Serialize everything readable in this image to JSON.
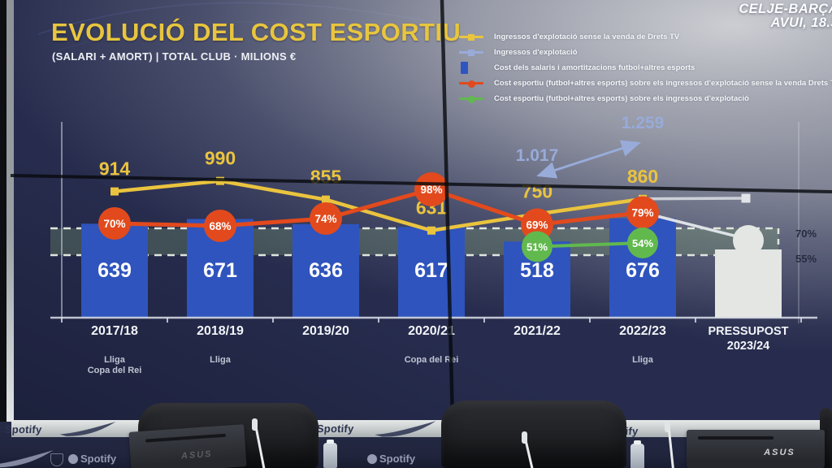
{
  "broadcast_overlay": {
    "line1": "CELJE-BARÇA",
    "line2": "AVUI, 18.3"
  },
  "slide": {
    "title": "EVOLUCIÓ DEL COST ESPORTIU",
    "subtitle": "(SALARI + AMORT) | TOTAL CLUB · MILIONS €",
    "legend": [
      {
        "marker": "yellow-line-square",
        "color": "#eac43e",
        "label": "Ingressos d'explotació sense la venda de Drets TV"
      },
      {
        "marker": "lavender-line-square",
        "color": "#98abd9",
        "label": "Ingressos d'explotació"
      },
      {
        "marker": "blue-bar",
        "color": "#2f55c0",
        "label": "Cost dels salaris i amortitzacions futbol+altres esports"
      },
      {
        "marker": "red-line-circle",
        "color": "#e24a1d",
        "label": "Cost esportiu (futbol+altres esports) sobre els ingressos d'explotació sense la venda Drets TV"
      },
      {
        "marker": "green-line-circle",
        "color": "#61b94e",
        "label": "Cost esportiu (futbol+altres esports) sobre els ingressos d'explotació"
      }
    ]
  },
  "chart_data": {
    "type": "bar+line",
    "title": "EVOLUCIÓ DEL COST ESPORTIU (SALARI + AMORT) | TOTAL CLUB · MILIONS €",
    "categories": [
      "2017/18",
      "2018/19",
      "2019/20",
      "2020/21",
      "2021/22",
      "2022/23",
      "PRESSUPOST 2023/24"
    ],
    "category_sublabels": [
      [
        "Lliga",
        "Copa del Rei"
      ],
      [
        "Lliga"
      ],
      [],
      [
        "Copa del Rei"
      ],
      [],
      [
        "Lliga"
      ],
      []
    ],
    "bars": {
      "name": "Cost dels salaris i amortitzacions futbol+altres esports (M€)",
      "values": [
        639,
        671,
        636,
        617,
        518,
        676,
        null
      ],
      "color": "#2f54bd"
    },
    "line_yellow": {
      "name": "Ingressos d'explotació sense la venda de Drets TV (M€)",
      "values": [
        914,
        990,
        855,
        631,
        750,
        860
      ],
      "color": "#eac43e"
    },
    "pct_red": {
      "name": "Cost esportiu sobre els ingressos d'explotació sense la venda Drets TV (%)",
      "values": [
        70,
        68,
        74,
        98,
        69,
        79
      ],
      "color": "#e24a1d"
    },
    "pct_green": {
      "name": "Cost esportiu sobre els ingressos d'explotació (%)",
      "values": [
        null,
        null,
        null,
        null,
        51,
        54
      ],
      "color": "#61b94e"
    },
    "annotations_blue": {
      "name": "Ingressos d'explotació (M€)",
      "labels": [
        "1.017",
        "1.259"
      ],
      "values": [
        1017,
        1259
      ],
      "color": "#98abd9"
    },
    "band": {
      "top_label": "70%",
      "bottom_label": "55%"
    },
    "budget_category": "PRESSUPOST 2023/24",
    "ylim": [
      0,
      1100
    ],
    "grid": false,
    "legend_position": "top-right"
  },
  "room": {
    "sponsor_wordmark": "Spotify",
    "monitor_brand": "ASUS"
  }
}
